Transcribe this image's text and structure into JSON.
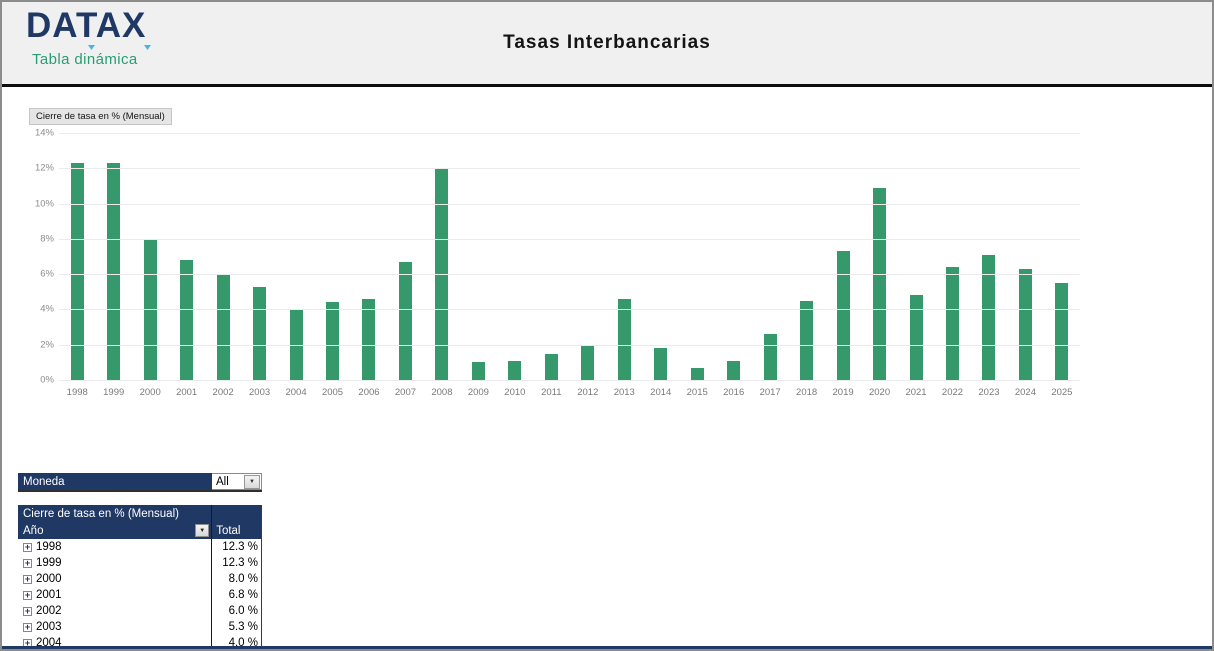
{
  "header": {
    "logo_text": "DATAX",
    "logo_tagline": "Tabla dinámica",
    "title": "Tasas Interbancarias"
  },
  "chart_data": {
    "type": "bar",
    "title": "Cierre de tasa en % (Mensual)",
    "field_button_label": "Cierre de tasa en % (Mensual)",
    "categories": [
      "1998",
      "1999",
      "2000",
      "2001",
      "2002",
      "2003",
      "2004",
      "2005",
      "2006",
      "2007",
      "2008",
      "2009",
      "2010",
      "2011",
      "2012",
      "2013",
      "2014",
      "2015",
      "2016",
      "2017",
      "2018",
      "2019",
      "2020",
      "2021",
      "2022",
      "2023",
      "2024",
      "2025"
    ],
    "values": [
      12.3,
      12.3,
      8.0,
      6.8,
      6.0,
      5.3,
      4.0,
      4.4,
      4.6,
      6.7,
      12.0,
      1.0,
      1.1,
      1.5,
      1.9,
      4.6,
      1.8,
      0.7,
      1.1,
      2.6,
      4.5,
      7.3,
      10.9,
      4.8,
      6.4,
      7.1,
      6.3,
      5.5
    ],
    "xlabel": "",
    "ylabel": "",
    "ylim": [
      0,
      14
    ],
    "ytick_labels": [
      "0%",
      "2%",
      "4%",
      "6%",
      "8%",
      "10%",
      "12%",
      "14%"
    ],
    "grid": true,
    "legend": false,
    "bar_color": "#35996b"
  },
  "filter": {
    "label": "Moneda",
    "value": "All",
    "dropdown_icon": "▼"
  },
  "pivot": {
    "header": "Cierre de tasa en % (Mensual)",
    "row_field": "Año",
    "total_label": "Total",
    "expand_icon": "+",
    "dropdown_icon": "▼",
    "rows": [
      {
        "label": "1998",
        "value": "12.3 %"
      },
      {
        "label": "1999",
        "value": "12.3 %"
      },
      {
        "label": "2000",
        "value": "8.0 %"
      },
      {
        "label": "2001",
        "value": "6.8 %"
      },
      {
        "label": "2002",
        "value": "6.0 %"
      },
      {
        "label": "2003",
        "value": "5.3 %"
      },
      {
        "label": "2004",
        "value": "4.0 %"
      }
    ]
  },
  "colors": {
    "navy": "#1f3864",
    "bar_green": "#35996b",
    "tagline_teal": "#2a9c74",
    "logo_accent_blue": "#45b5e8",
    "header_bg": "#f0f0f0"
  }
}
